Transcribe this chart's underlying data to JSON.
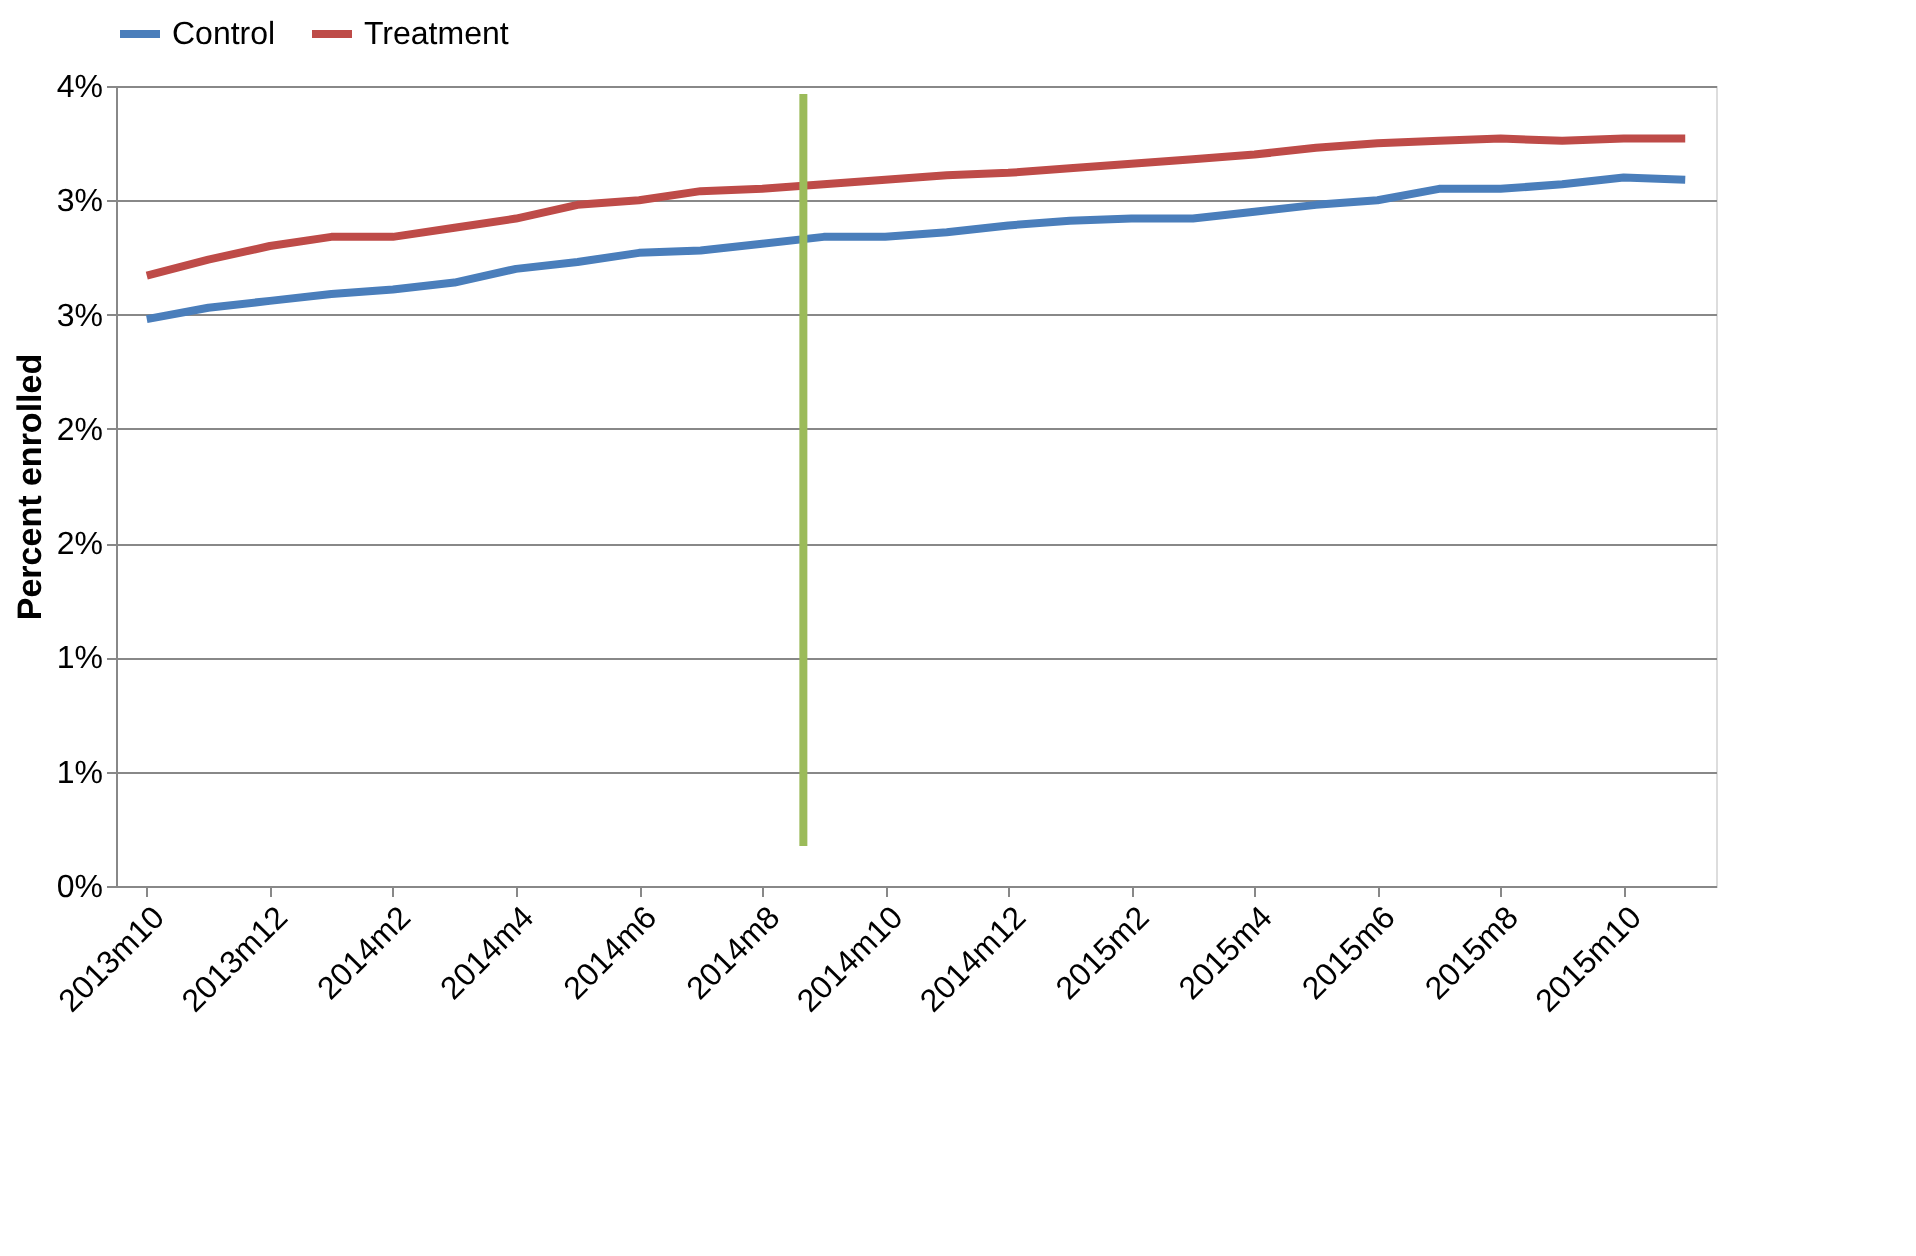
{
  "chart_data": {
    "type": "line",
    "ylabel": "Percent enrolled",
    "categories": [
      "2013m10",
      null,
      "2013m12",
      null,
      "2014m2",
      null,
      "2014m4",
      null,
      "2014m6",
      null,
      "2014m8",
      null,
      "2014m10",
      null,
      "2014m12",
      null,
      "2015m2",
      null,
      "2015m4",
      null,
      "2015m6",
      null,
      "2015m8",
      null,
      "2015m10",
      null
    ],
    "series": [
      {
        "name": "Control",
        "color": "#4a7ebb",
        "values": [
          2.48,
          2.53,
          2.56,
          2.59,
          2.61,
          2.64,
          2.7,
          2.73,
          2.77,
          2.78,
          2.81,
          2.84,
          2.84,
          2.86,
          2.89,
          2.91,
          2.92,
          2.92,
          2.95,
          2.98,
          3.0,
          3.05,
          3.05,
          3.07,
          3.1,
          3.09
        ]
      },
      {
        "name": "Treatment",
        "color": "#be4b48",
        "values": [
          2.67,
          2.74,
          2.8,
          2.84,
          2.84,
          2.88,
          2.92,
          2.98,
          3.0,
          3.04,
          3.05,
          3.07,
          3.09,
          3.11,
          3.12,
          3.14,
          3.16,
          3.18,
          3.2,
          3.23,
          3.25,
          3.26,
          3.27,
          3.26,
          3.27,
          3.27
        ]
      }
    ],
    "ylim": [
      0,
      3.5
    ],
    "yticks": [
      {
        "value": 0,
        "label": "0%"
      },
      {
        "value": 0.5,
        "label": "1%"
      },
      {
        "value": 1,
        "label": "1%"
      },
      {
        "value": 1.5,
        "label": "2%"
      },
      {
        "value": 2,
        "label": "2%"
      },
      {
        "value": 2.5,
        "label": "3%"
      },
      {
        "value": 3,
        "label": "3%"
      },
      {
        "value": 3.5,
        "label": "4%"
      }
    ],
    "grid": "y",
    "legend": "top",
    "line_style": "solid",
    "marker": "none"
  }
}
